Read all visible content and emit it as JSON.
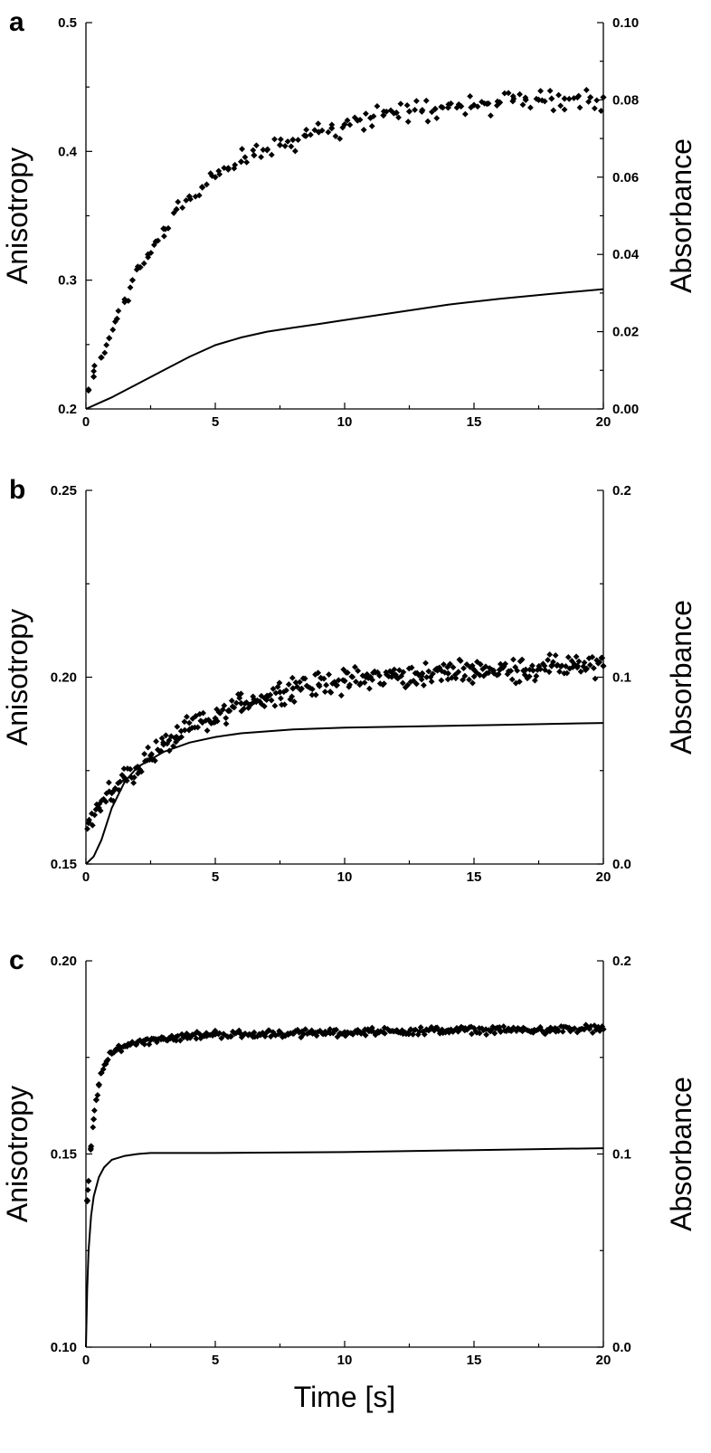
{
  "chart_data": [
    {
      "panel": "a",
      "type": "scatter",
      "xlim": [
        0,
        20
      ],
      "xticks": [
        0,
        5,
        10,
        15,
        20
      ],
      "xtick_labels": [
        "0",
        "5",
        "10",
        "15",
        "20"
      ],
      "xlabel": "",
      "ylabel_left": "Anisotropy",
      "ylabel_right": "Absorbance",
      "ylim_left": [
        0.2,
        0.5
      ],
      "yticks_left": [
        0.2,
        0.3,
        0.4,
        0.5
      ],
      "ytick_labels_left": [
        "0.2",
        "0.3",
        "0.4",
        "0.5"
      ],
      "ylim_right": [
        0.0,
        0.1
      ],
      "yticks_right": [
        0.0,
        0.02,
        0.04,
        0.06,
        0.08,
        0.1
      ],
      "ytick_labels_right": [
        "0.00",
        "0.02",
        "0.04",
        "0.06",
        "0.08",
        "0.10"
      ],
      "series": [
        {
          "kind": "points",
          "axis": "left",
          "x": [
            0.1,
            0.3,
            0.6,
            0.9,
            1.2,
            1.5,
            1.8,
            2.1,
            2.4,
            2.7,
            3.0,
            3.5,
            4.0,
            4.5,
            5.0,
            5.5,
            6.0,
            6.5,
            7.0,
            7.5,
            8.0,
            8.5,
            9.0,
            9.5,
            10.0,
            10.5,
            11.0,
            11.5,
            12.0,
            12.5,
            13.0,
            13.5,
            14.0,
            14.5,
            15.0,
            15.5,
            16.0,
            16.5,
            17.0,
            17.5,
            18.0,
            18.5,
            19.0,
            19.5,
            20.0
          ],
          "y": [
            0.215,
            0.225,
            0.24,
            0.255,
            0.27,
            0.285,
            0.3,
            0.31,
            0.32,
            0.33,
            0.34,
            0.355,
            0.365,
            0.372,
            0.38,
            0.386,
            0.392,
            0.397,
            0.401,
            0.405,
            0.409,
            0.412,
            0.415,
            0.418,
            0.421,
            0.424,
            0.426,
            0.428,
            0.43,
            0.431,
            0.432,
            0.433,
            0.434,
            0.435,
            0.436,
            0.437,
            0.438,
            0.439,
            0.44,
            0.44,
            0.441,
            0.441,
            0.442,
            0.442,
            0.442
          ]
        },
        {
          "kind": "line",
          "axis": "right",
          "x": [
            0,
            0.5,
            1,
            2,
            3,
            4,
            5,
            6,
            7,
            8,
            9,
            10,
            12,
            14,
            16,
            18,
            20
          ],
          "y": [
            0.0,
            0.0015,
            0.003,
            0.0065,
            0.01,
            0.0135,
            0.0165,
            0.0185,
            0.02,
            0.021,
            0.022,
            0.023,
            0.025,
            0.027,
            0.0285,
            0.0298,
            0.031
          ]
        }
      ]
    },
    {
      "panel": "b",
      "type": "scatter",
      "xlim": [
        0,
        20
      ],
      "xticks": [
        0,
        5,
        10,
        15,
        20
      ],
      "xtick_labels": [
        "0",
        "5",
        "10",
        "15",
        "20"
      ],
      "xlabel": "",
      "ylabel_left": "Anisotropy",
      "ylabel_right": "Absorbance",
      "ylim_left": [
        0.15,
        0.25
      ],
      "yticks_left": [
        0.15,
        0.2,
        0.25
      ],
      "ytick_labels_left": [
        "0.15",
        "0.20",
        "0.25"
      ],
      "ylim_right": [
        0.0,
        0.2
      ],
      "yticks_right": [
        0.0,
        0.1,
        0.2
      ],
      "ytick_labels_right": [
        "0.0",
        "0.1",
        "0.2"
      ],
      "series": [
        {
          "kind": "points",
          "axis": "left",
          "x": [
            0.1,
            0.5,
            1.0,
            1.5,
            2.0,
            2.5,
            3.0,
            3.5,
            4.0,
            4.5,
            5.0,
            5.5,
            6.0,
            6.5,
            7.0,
            7.5,
            8.0,
            9.0,
            10.0,
            11.0,
            12.0,
            13.0,
            14.0,
            15.0,
            16.0,
            17.0,
            18.0,
            19.0,
            20.0
          ],
          "y": [
            0.161,
            0.165,
            0.169,
            0.173,
            0.176,
            0.179,
            0.182,
            0.184,
            0.186,
            0.188,
            0.189,
            0.191,
            0.193,
            0.194,
            0.195,
            0.196,
            0.197,
            0.198,
            0.199,
            0.2,
            0.2,
            0.201,
            0.201,
            0.202,
            0.202,
            0.202,
            0.203,
            0.203,
            0.203
          ]
        },
        {
          "kind": "line",
          "axis": "right",
          "x": [
            0,
            0.3,
            0.6,
            1.0,
            1.5,
            2.0,
            3.0,
            4.0,
            5.0,
            6.0,
            8.0,
            10.0,
            12.0,
            14.0,
            16.0,
            18.0,
            20.0
          ],
          "y": [
            0.0,
            0.004,
            0.013,
            0.03,
            0.044,
            0.052,
            0.06,
            0.065,
            0.068,
            0.07,
            0.072,
            0.073,
            0.0735,
            0.074,
            0.0745,
            0.075,
            0.0755
          ]
        }
      ]
    },
    {
      "panel": "c",
      "type": "scatter",
      "xlim": [
        0,
        20
      ],
      "xticks": [
        0,
        5,
        10,
        15,
        20
      ],
      "xtick_labels": [
        "0",
        "5",
        "10",
        "15",
        "20"
      ],
      "xlabel": "Time [s]",
      "ylabel_left": "Anisotropy",
      "ylabel_right": "Absorbance",
      "ylim_left": [
        0.1,
        0.2
      ],
      "yticks_left": [
        0.1,
        0.15,
        0.2
      ],
      "ytick_labels_left": [
        "0.10",
        "0.15",
        "0.20"
      ],
      "ylim_right": [
        0.0,
        0.2
      ],
      "yticks_right": [
        0.0,
        0.1,
        0.2
      ],
      "ytick_labels_right": [
        "0.0",
        "0.1",
        "0.2"
      ],
      "series": [
        {
          "kind": "points",
          "axis": "left",
          "x": [
            0.05,
            0.1,
            0.2,
            0.3,
            0.4,
            0.5,
            0.6,
            0.8,
            1.0,
            1.2,
            1.5,
            2.0,
            2.5,
            3.0,
            4.0,
            5.0,
            6.0,
            8.0,
            10.0,
            12.0,
            14.0,
            16.0,
            18.0,
            20.0
          ],
          "y": [
            0.138,
            0.143,
            0.152,
            0.159,
            0.164,
            0.168,
            0.171,
            0.174,
            0.176,
            0.177,
            0.178,
            0.179,
            0.1795,
            0.18,
            0.1805,
            0.181,
            0.181,
            0.1812,
            0.1815,
            0.1818,
            0.182,
            0.182,
            0.1822,
            0.1823
          ]
        },
        {
          "kind": "line",
          "axis": "right",
          "x": [
            0,
            0.05,
            0.1,
            0.2,
            0.3,
            0.5,
            0.7,
            1.0,
            1.5,
            2.0,
            2.5,
            3.0,
            5.0,
            10.0,
            15.0,
            20.0
          ],
          "y": [
            0.0,
            0.03,
            0.05,
            0.068,
            0.078,
            0.088,
            0.093,
            0.097,
            0.099,
            0.1,
            0.1005,
            0.1005,
            0.1005,
            0.101,
            0.102,
            0.103
          ]
        }
      ]
    }
  ]
}
